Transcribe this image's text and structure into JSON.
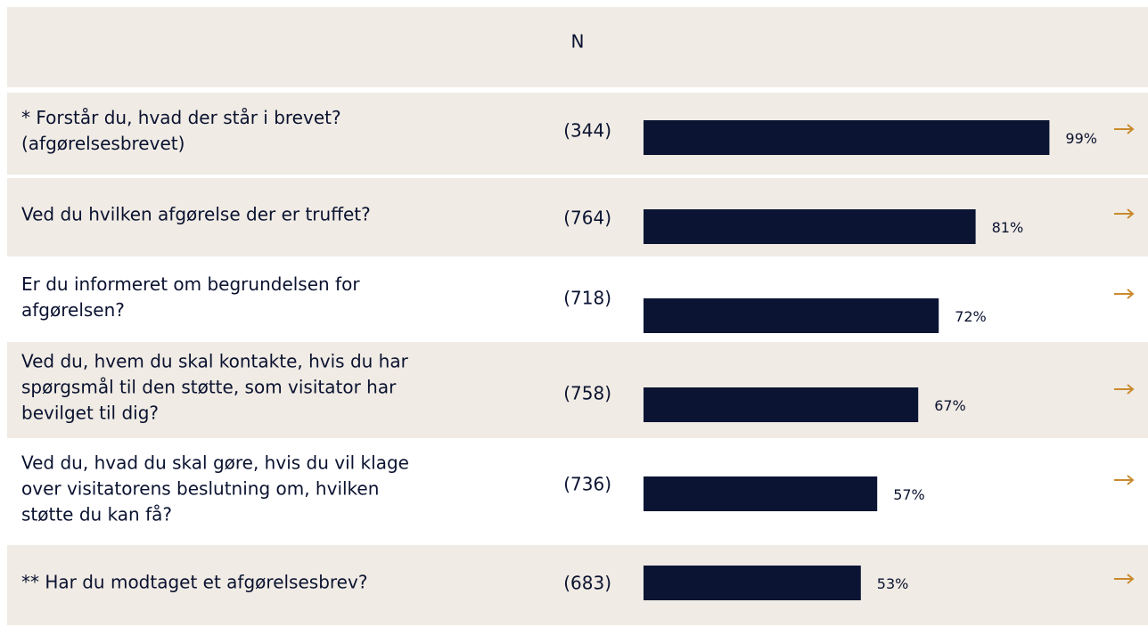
{
  "chart_data": {
    "type": "bar",
    "n_header": "N",
    "categories": [
      [
        "* Forstår du, hvad der står i brevet?",
        "(afgørelsesbrevet)"
      ],
      [
        "Ved du hvilken afgørelse der er truffet?"
      ],
      [
        "Er du informeret om begrundelsen for",
        "afgørelsen?"
      ],
      [
        "Ved du, hvem du skal kontakte, hvis du har",
        "spørgsmål til den støtte, som visitator har",
        "bevilget til dig?"
      ],
      [
        "Ved du, hvad du skal gøre, hvis du vil klage",
        "over visitatorens beslutning om, hvilken",
        "støtte du kan få?"
      ],
      [
        "** Har du modtaget et afgørelsesbrev?"
      ]
    ],
    "n": [
      344,
      764,
      718,
      758,
      736,
      683
    ],
    "n_labels": [
      "(344)",
      "(764)",
      "(718)",
      "(758)",
      "(736)",
      "(683)"
    ],
    "values": [
      99,
      81,
      72,
      67,
      57,
      53
    ],
    "value_labels": [
      "99%",
      "81%",
      "72%",
      "67%",
      "57%",
      "53%"
    ],
    "color": "#0b1533"
  }
}
